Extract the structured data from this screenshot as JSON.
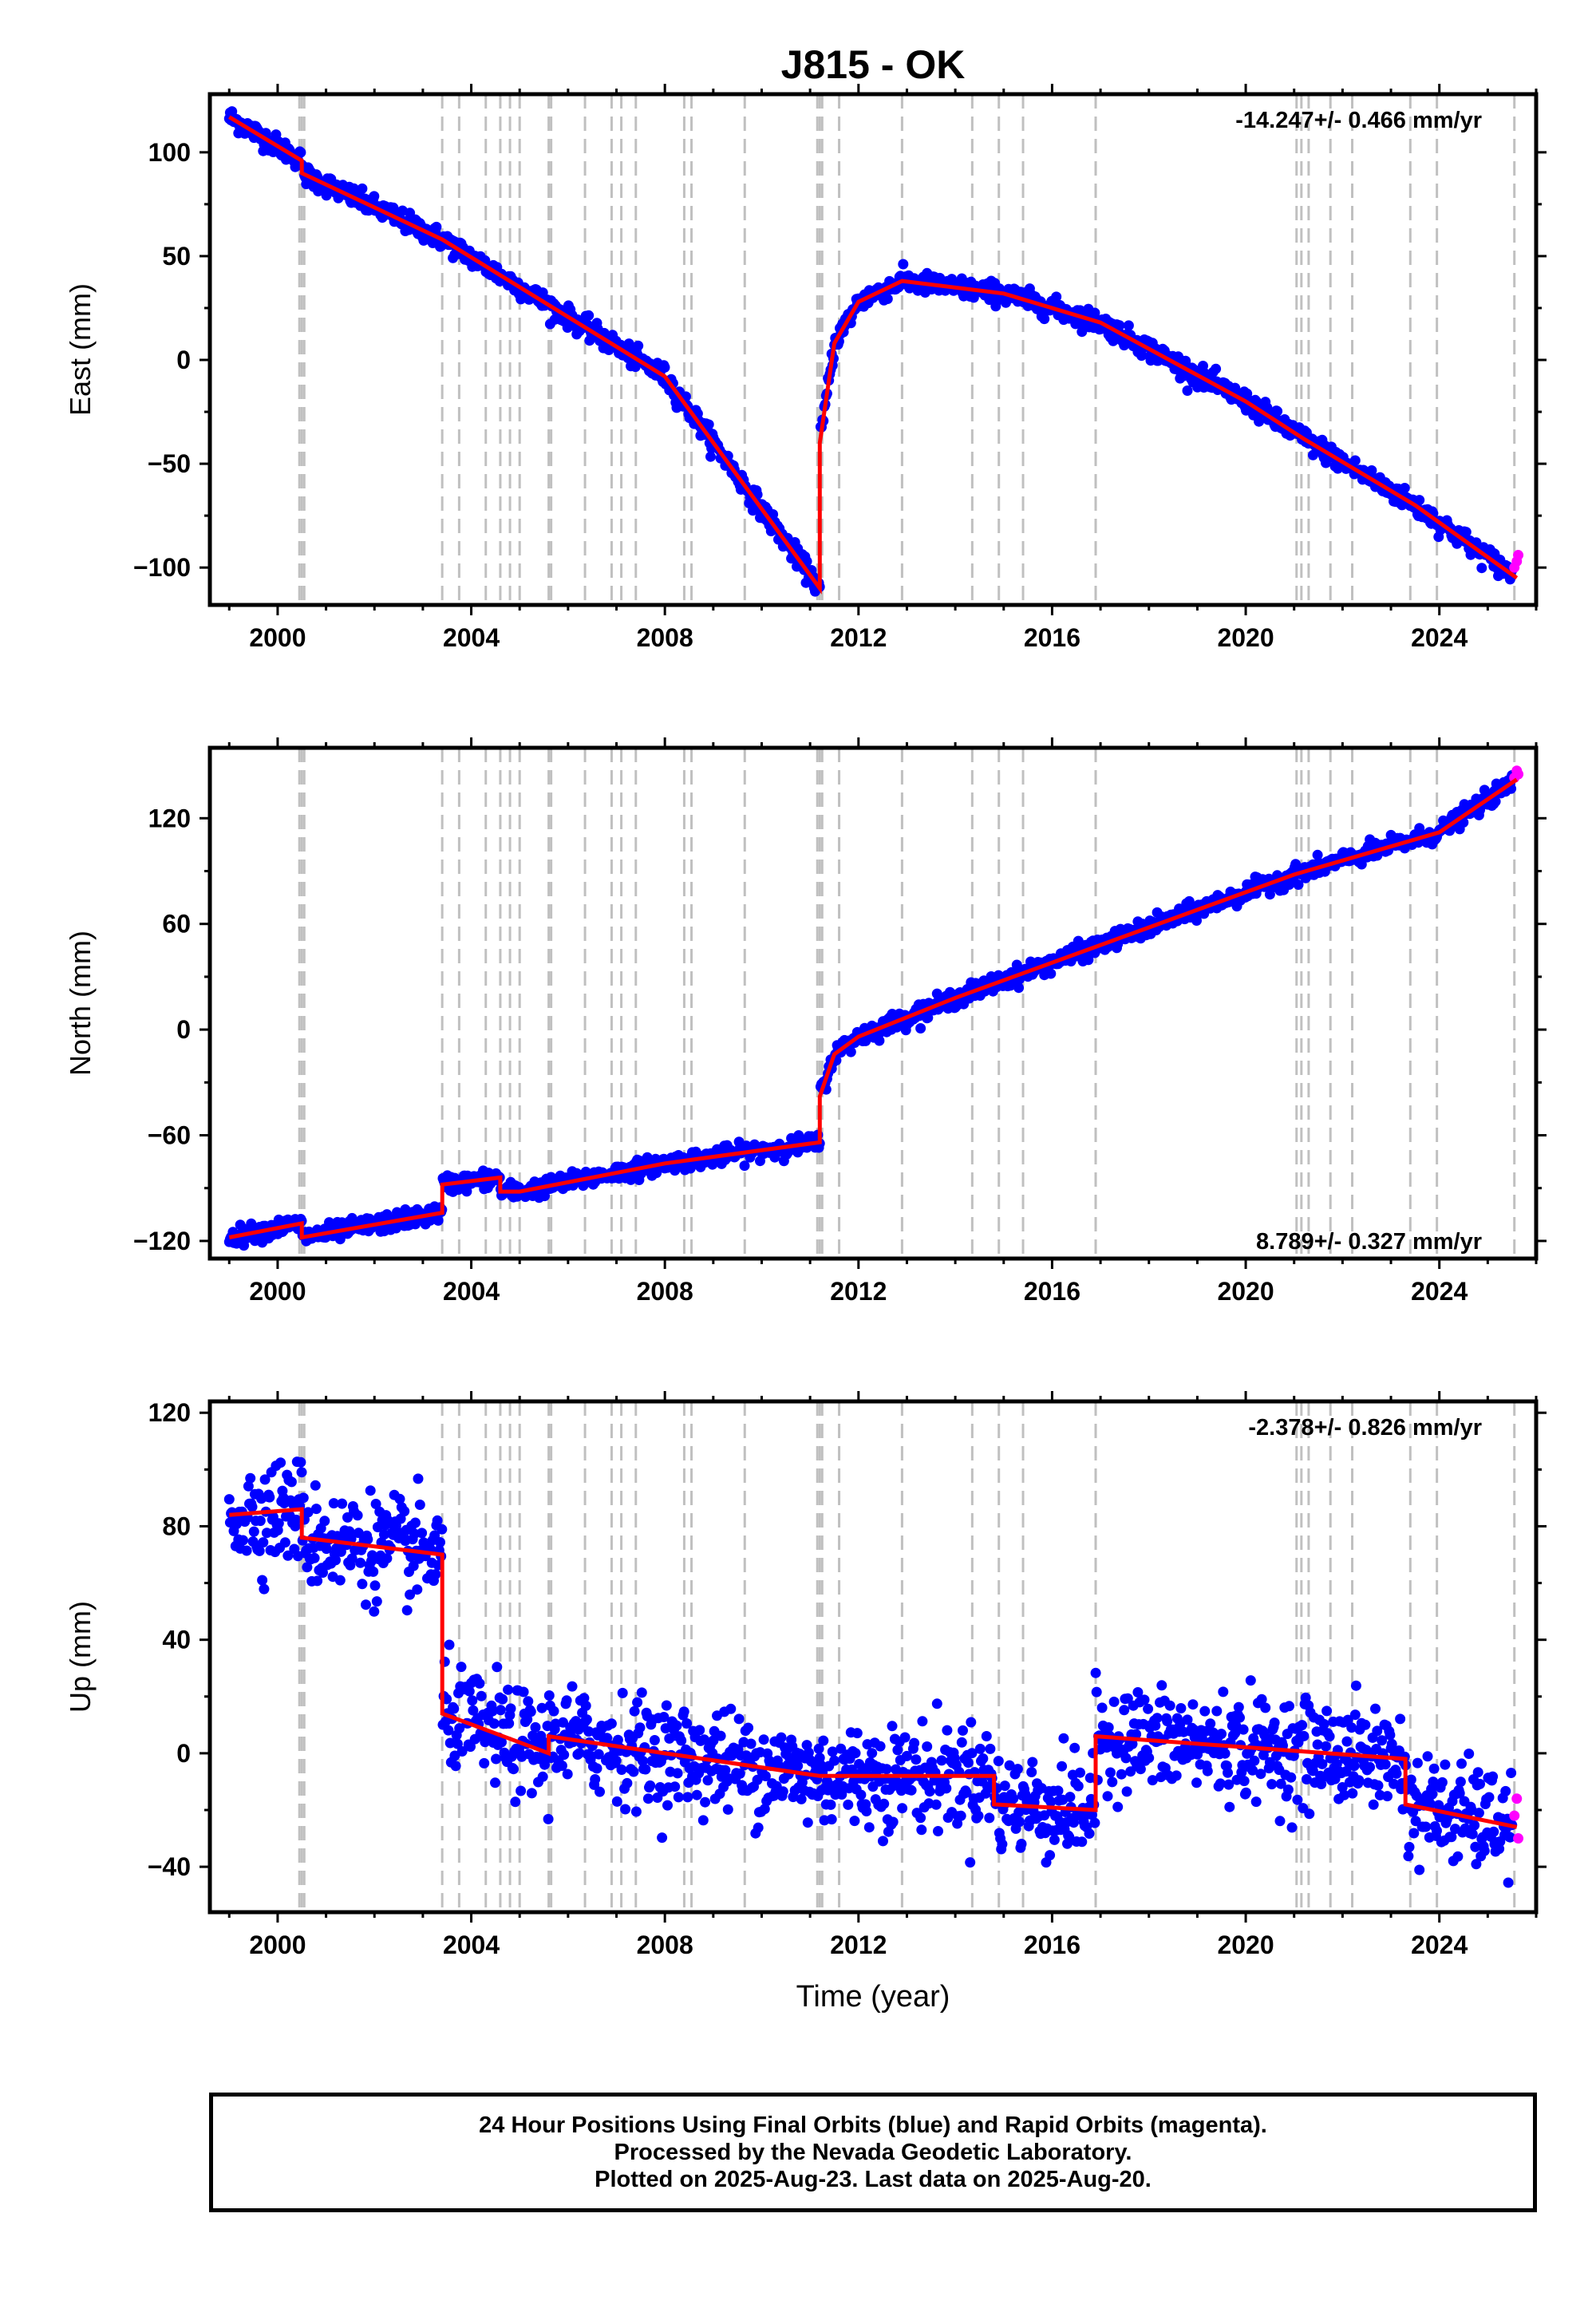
{
  "title": "J815 - OK",
  "colors": {
    "final_orbits": "#0000ff",
    "rapid_orbits": "#ff00ff",
    "model": "#ff0000",
    "event_lines": "#c0c0c0"
  },
  "chart_data": [
    {
      "type": "scatter",
      "ylabel": "East (mm)",
      "xlabel": "",
      "xlim": [
        1998.6,
        2026.0
      ],
      "ylim": [
        -118,
        128
      ],
      "yticks": [
        -100,
        -50,
        0,
        50,
        100
      ],
      "xticks": [
        2000,
        2004,
        2008,
        2012,
        2016,
        2020,
        2024
      ],
      "rate_label": "-14.247+/- 0.466 mm/yr",
      "rate_position": "top-right",
      "model_breakpoints": {
        "x": [
          1999.0,
          2000.5,
          2000.5,
          2003.4,
          2008.0,
          2011.2,
          2011.2,
          2011.5,
          2012.0,
          2012.9,
          2015.0,
          2017.0,
          2020.0,
          2021.2,
          2023.5,
          2025.6
        ],
        "y": [
          117,
          96,
          90,
          58,
          -8,
          -110,
          -40,
          8,
          28,
          38,
          32,
          18,
          -20,
          -38,
          -70,
          -105
        ]
      },
      "rapid_end": {
        "x": [
          2025.55,
          2025.6,
          2025.63
        ],
        "y": [
          -100,
          -97,
          -94
        ]
      },
      "scatter_spread": 2.5
    },
    {
      "type": "scatter",
      "ylabel": "North (mm)",
      "xlabel": "",
      "xlim": [
        1998.6,
        2026.0
      ],
      "ylim": [
        -130,
        160
      ],
      "yticks": [
        -120,
        -60,
        0,
        60,
        120
      ],
      "xticks": [
        2000,
        2004,
        2008,
        2012,
        2016,
        2020,
        2024
      ],
      "rate_label": "8.789+/- 0.327 mm/yr",
      "rate_position": "bottom-right",
      "model_breakpoints": {
        "x": [
          1999.0,
          2000.5,
          2000.5,
          2003.4,
          2003.4,
          2004.6,
          2004.6,
          2005.0,
          2008.0,
          2011.2,
          2011.2,
          2011.5,
          2012.0,
          2014.0,
          2018.0,
          2021.0,
          2024.0,
          2025.6
        ],
        "y": [
          -118,
          -110,
          -118,
          -104,
          -88,
          -84,
          -92,
          -92,
          -76,
          -64,
          -38,
          -14,
          -4,
          18,
          58,
          88,
          112,
          142
        ]
      },
      "rapid_end": {
        "x": [
          2025.55,
          2025.6,
          2025.63
        ],
        "y": [
          143,
          147,
          145
        ]
      },
      "scatter_spread": 2.5
    },
    {
      "type": "scatter",
      "ylabel": "Up (mm)",
      "xlabel": "Time (year)",
      "xlim": [
        1998.6,
        2026.0
      ],
      "ylim": [
        -56,
        124
      ],
      "yticks": [
        -40,
        0,
        40,
        80,
        120
      ],
      "xticks": [
        2000,
        2004,
        2008,
        2012,
        2016,
        2020,
        2024
      ],
      "rate_label": "-2.378+/- 0.826 mm/yr",
      "rate_position": "top-right",
      "model_breakpoints": {
        "x": [
          1999.0,
          2000.5,
          2000.5,
          2003.4,
          2003.4,
          2005.6,
          2005.6,
          2011.2,
          2014.8,
          2014.8,
          2016.9,
          2016.9,
          2023.3,
          2023.3,
          2025.6
        ],
        "y": [
          84,
          86,
          76,
          70,
          14,
          0,
          6,
          -8,
          -8,
          -18,
          -20,
          6,
          -2,
          -18,
          -26
        ]
      },
      "rapid_end": {
        "x": [
          2025.55,
          2025.6,
          2025.63
        ],
        "y": [
          -22,
          -16,
          -30
        ]
      },
      "scatter_spread": 9
    }
  ],
  "event_lines_years": [
    2000.45,
    2000.5,
    2000.55,
    2003.4,
    2003.75,
    2004.3,
    2004.6,
    2004.8,
    2005.0,
    2005.6,
    2005.65,
    2006.35,
    2006.9,
    2007.1,
    2007.4,
    2008.4,
    2008.55,
    2009.65,
    2011.15,
    2011.2,
    2011.25,
    2011.6,
    2012.9,
    2014.35,
    2014.9,
    2015.4,
    2016.9,
    2021.05,
    2021.15,
    2021.3,
    2021.75,
    2022.2,
    2023.4,
    2023.95,
    2025.55
  ],
  "caption": {
    "line1": "24 Hour Positions Using Final Orbits (blue) and Rapid Orbits (magenta).",
    "line2": "Processed by the Nevada Geodetic Laboratory.",
    "line3": "Plotted on 2025-Aug-23. Last data on 2025-Aug-20."
  }
}
